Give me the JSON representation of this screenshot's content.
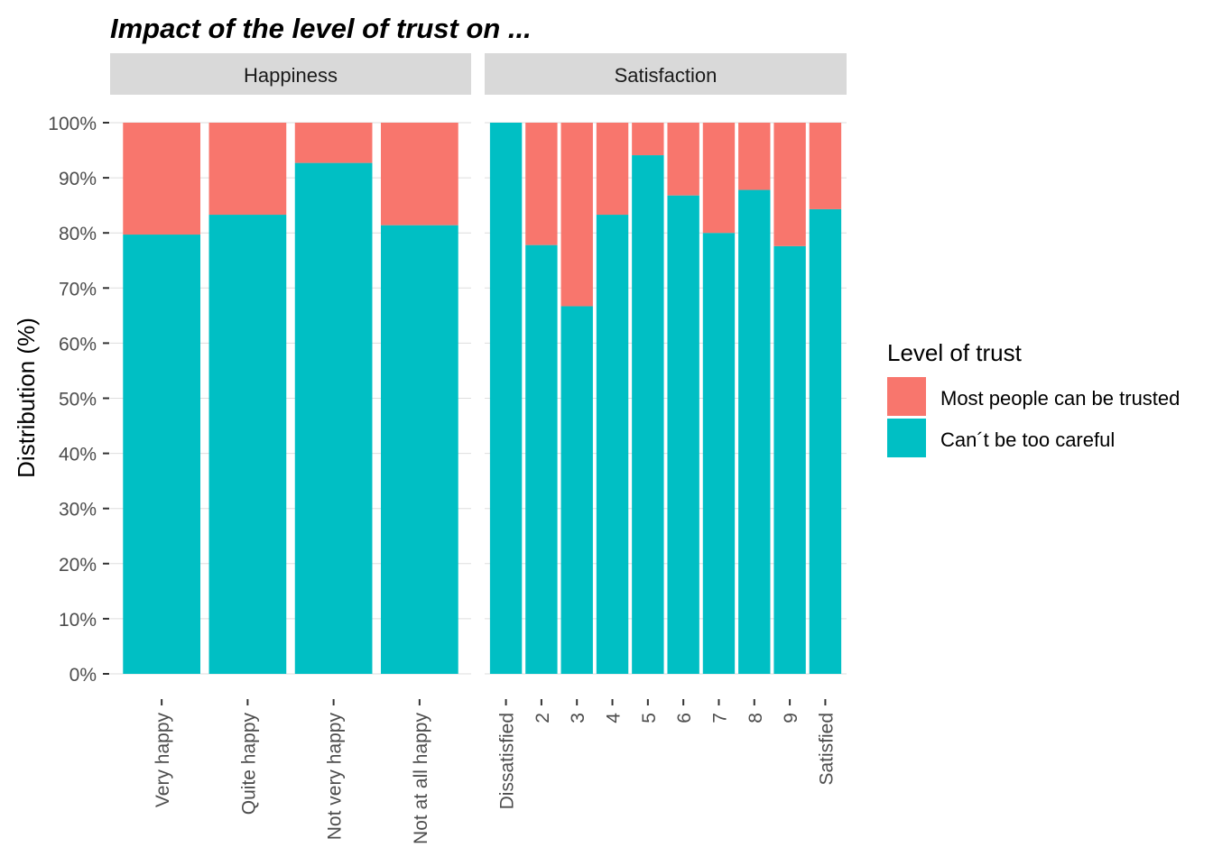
{
  "colors": {
    "trusted": "#F8766D",
    "careful": "#00BFC4",
    "strip": "#D9D9D9",
    "grid": "#DEDEDE"
  },
  "chart_data": {
    "type": "bar",
    "stacked": true,
    "title": "Impact of the level of trust on ...",
    "ylabel": "Distribution (%)",
    "xlabel": "",
    "ylim": [
      0,
      100
    ],
    "y_ticks": [
      "0%",
      "10%",
      "20%",
      "30%",
      "40%",
      "50%",
      "60%",
      "70%",
      "80%",
      "90%",
      "100%"
    ],
    "grid": true,
    "legend": {
      "title": "Level of trust",
      "position": "right",
      "entries": [
        "Most people can be trusted",
        "Can´t be too careful"
      ]
    },
    "panels": [
      {
        "name": "Happiness",
        "categories": [
          "Very happy",
          "Quite happy",
          "Not very happy",
          "Not at all happy"
        ],
        "series": [
          {
            "name": "Can´t be too careful",
            "values": [
              79.7,
              83.3,
              92.7,
              81.4
            ]
          },
          {
            "name": "Most people can be trusted",
            "values": [
              20.3,
              16.7,
              7.3,
              18.6
            ]
          }
        ]
      },
      {
        "name": "Satisfaction",
        "categories": [
          "Dissatisfied",
          "2",
          "3",
          "4",
          "5",
          "6",
          "7",
          "8",
          "9",
          "Satisfied"
        ],
        "series": [
          {
            "name": "Can´t be too careful",
            "values": [
              100,
              77.8,
              66.7,
              83.3,
              94.1,
              86.8,
              80.0,
              87.8,
              77.6,
              84.3
            ]
          },
          {
            "name": "Most people can be trusted",
            "values": [
              0,
              22.2,
              33.3,
              16.7,
              5.9,
              13.2,
              20.0,
              12.2,
              22.4,
              15.7
            ]
          }
        ]
      }
    ]
  }
}
